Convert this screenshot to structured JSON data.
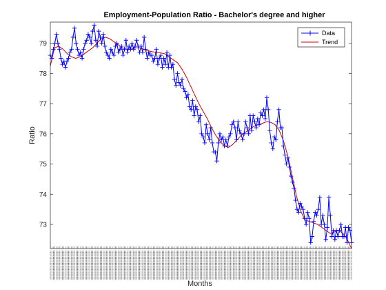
{
  "chart_data": {
    "type": "line",
    "title": "Employment-Population Ratio - Bachelor's degree and higher",
    "xlabel": "Months",
    "ylabel": "Ratio",
    "ylim": [
      72.2,
      79.7
    ],
    "yticks": [
      73,
      74,
      75,
      76,
      77,
      78,
      79
    ],
    "grid": false,
    "legend_placement": "top-right",
    "x_tick_labels_note": "dense vertical month labels, not legible",
    "series": [
      {
        "name": "Data",
        "color": "#0000ff",
        "marker": "plus",
        "values": [
          78.6,
          78.5,
          78.8,
          79.0,
          79.3,
          79.0,
          78.8,
          78.5,
          78.3,
          78.4,
          78.2,
          78.4,
          78.5,
          78.7,
          78.8,
          79.2,
          79.5,
          79.0,
          78.8,
          78.6,
          78.7,
          78.5,
          78.8,
          79.0,
          79.1,
          79.3,
          79.2,
          79.0,
          79.4,
          79.6,
          79.1,
          78.9,
          79.4,
          79.2,
          79.0,
          79.3,
          78.9,
          78.7,
          78.6,
          78.5,
          78.8,
          78.7,
          78.6,
          78.9,
          79.0,
          78.7,
          78.8,
          78.9,
          78.6,
          78.8,
          79.1,
          78.7,
          78.9,
          78.8,
          79.0,
          78.8,
          78.9,
          79.1,
          78.9,
          78.7,
          78.9,
          78.7,
          79.2,
          78.8,
          78.5,
          78.7,
          78.6,
          78.6,
          78.4,
          78.5,
          78.8,
          78.3,
          78.5,
          78.6,
          78.2,
          78.5,
          78.3,
          78.7,
          78.2,
          78.6,
          78.2,
          78.3,
          77.8,
          77.6,
          78.0,
          77.7,
          77.6,
          77.8,
          77.5,
          77.4,
          77.2,
          77.3,
          76.9,
          76.8,
          77.1,
          76.6,
          76.9,
          76.8,
          76.4,
          76.6,
          76.0,
          75.9,
          75.7,
          76.3,
          76.0,
          75.8,
          76.2,
          75.7,
          75.4,
          75.4,
          75.1,
          75.7,
          76.0,
          75.8,
          75.9,
          75.6,
          75.8,
          75.6,
          75.9,
          76.0,
          76.3,
          76.4,
          76.2,
          75.8,
          76.4,
          76.1,
          76.0,
          75.8,
          76.0,
          76.4,
          76.2,
          76.0,
          76.6,
          76.1,
          76.6,
          76.4,
          76.2,
          76.5,
          76.3,
          76.7,
          76.6,
          76.8,
          76.5,
          77.2,
          76.8,
          76.1,
          75.7,
          75.5,
          75.9,
          75.8,
          76.4,
          76.8,
          76.2,
          76.2,
          75.6,
          75.3,
          75.0,
          75.2,
          74.9,
          74.6,
          74.4,
          74.2,
          73.8,
          73.5,
          73.4,
          73.7,
          73.6,
          73.5,
          73.2,
          73.0,
          73.4,
          73.2,
          72.4,
          72.6,
          73.1,
          73.4,
          73.3,
          73.5,
          73.9,
          73.0,
          73.3,
          73.0,
          72.5,
          72.9,
          73.9,
          73.3,
          72.6,
          72.8,
          72.5,
          72.8,
          72.6,
          72.8,
          73.0,
          72.6,
          72.6,
          72.9,
          72.4,
          72.9,
          72.8,
          72.4
        ]
      },
      {
        "name": "Trend",
        "color": "#cc0000",
        "marker": "none",
        "values": [
          78.25,
          78.85,
          78.9,
          78.8,
          78.65,
          78.55,
          78.5,
          78.55,
          78.65,
          78.75,
          78.85,
          79.0,
          79.15,
          79.2,
          79.15,
          79.05,
          78.95,
          78.85,
          78.8,
          78.8,
          78.85,
          78.85,
          78.8,
          78.75,
          78.72,
          78.7,
          78.68,
          78.65,
          78.55,
          78.45,
          78.35,
          78.15,
          77.9,
          77.6,
          77.3,
          77.0,
          76.75,
          76.5,
          76.2,
          75.95,
          75.75,
          75.6,
          75.55,
          75.65,
          75.8,
          75.95,
          76.05,
          76.15,
          76.25,
          76.3,
          76.35,
          76.4,
          76.38,
          76.3,
          76.1,
          75.75,
          75.25,
          74.6,
          73.95,
          73.45,
          73.15,
          73.1,
          73.05,
          73.0,
          72.9,
          72.8,
          72.7,
          72.75,
          72.8,
          72.7,
          72.5,
          72.2
        ]
      }
    ]
  }
}
